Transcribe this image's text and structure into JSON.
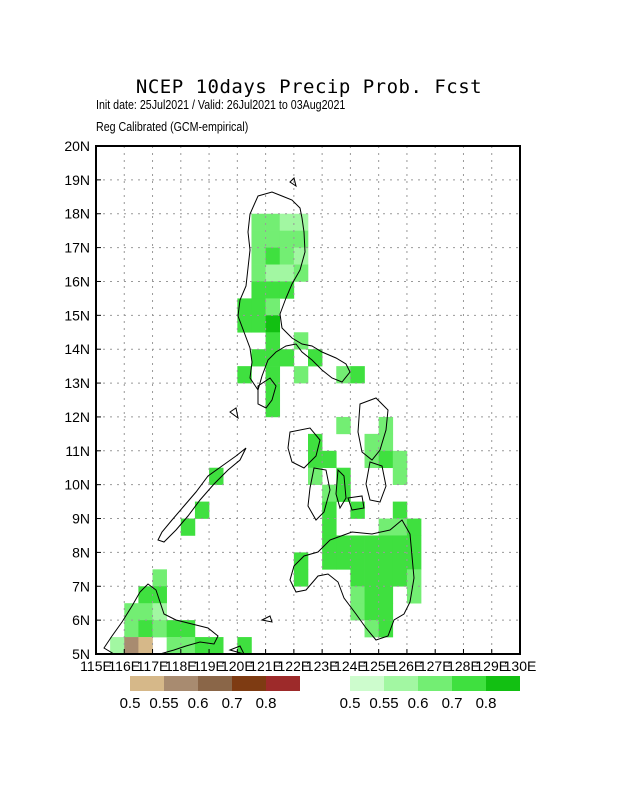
{
  "header": {
    "title": "NCEP 10days Precip Prob. Fcst",
    "subtitle1": "Init date: 25Jul2021 / Valid: 26Jul2021 to 03Aug2021",
    "subtitle2": "Reg Calibrated (GCM-empirical)"
  },
  "axes": {
    "lat_labels": [
      "5N",
      "6N",
      "7N",
      "8N",
      "9N",
      "10N",
      "11N",
      "12N",
      "13N",
      "14N",
      "15N",
      "16N",
      "17N",
      "18N",
      "19N",
      "20N"
    ],
    "lon_labels": [
      "115E",
      "116E",
      "117E",
      "118E",
      "119E",
      "120E",
      "121E",
      "122E",
      "123E",
      "124E",
      "125E",
      "126E",
      "127E",
      "128E",
      "129E",
      "130E"
    ],
    "lat_range": [
      5,
      20
    ],
    "lon_range": [
      115,
      130
    ],
    "grid": "dotted"
  },
  "legend": {
    "dry": {
      "labels": [
        "0.5",
        "0.55",
        "0.6",
        "0.7",
        "0.8"
      ],
      "colors": [
        "#d6b889",
        "#a88b70",
        "#8a6648",
        "#7e3b12",
        "#9d2a2a"
      ]
    },
    "wet": {
      "labels": [
        "0.5",
        "0.55",
        "0.6",
        "0.7",
        "0.8"
      ],
      "colors": [
        "#cdfccd",
        "#a2f7a2",
        "#73ee73",
        "#3fe03f",
        "#12c012"
      ]
    }
  },
  "chart_data": {
    "type": "heatmap",
    "title": "NCEP 10days Precip Prob. Fcst",
    "units_x": "longitude",
    "units_y": "latitude",
    "cell_size_deg": 0.5,
    "cells": [
      {
        "lon": 120.5,
        "lat": 17.5,
        "v": 0.6
      },
      {
        "lon": 121.0,
        "lat": 17.5,
        "v": 0.6
      },
      {
        "lon": 121.5,
        "lat": 17.5,
        "v": 0.55
      },
      {
        "lon": 122.0,
        "lat": 17.5,
        "v": 0.55
      },
      {
        "lon": 120.5,
        "lat": 17.0,
        "v": 0.6
      },
      {
        "lon": 121.0,
        "lat": 17.0,
        "v": 0.6
      },
      {
        "lon": 121.5,
        "lat": 17.0,
        "v": 0.6
      },
      {
        "lon": 122.0,
        "lat": 17.0,
        "v": 0.6
      },
      {
        "lon": 120.5,
        "lat": 16.5,
        "v": 0.6
      },
      {
        "lon": 121.0,
        "lat": 16.5,
        "v": 0.7
      },
      {
        "lon": 121.5,
        "lat": 16.5,
        "v": 0.6
      },
      {
        "lon": 122.0,
        "lat": 16.5,
        "v": 0.55
      },
      {
        "lon": 120.5,
        "lat": 16.0,
        "v": 0.6
      },
      {
        "lon": 121.0,
        "lat": 16.0,
        "v": 0.55
      },
      {
        "lon": 121.5,
        "lat": 16.0,
        "v": 0.55
      },
      {
        "lon": 122.0,
        "lat": 16.0,
        "v": 0.6
      },
      {
        "lon": 120.5,
        "lat": 15.5,
        "v": 0.7
      },
      {
        "lon": 121.0,
        "lat": 15.5,
        "v": 0.7
      },
      {
        "lon": 121.5,
        "lat": 15.5,
        "v": 0.7
      },
      {
        "lon": 120.0,
        "lat": 15.0,
        "v": 0.7
      },
      {
        "lon": 120.5,
        "lat": 15.0,
        "v": 0.7
      },
      {
        "lon": 121.0,
        "lat": 15.0,
        "v": 0.6
      },
      {
        "lon": 120.0,
        "lat": 14.5,
        "v": 0.7
      },
      {
        "lon": 120.5,
        "lat": 14.5,
        "v": 0.7
      },
      {
        "lon": 121.0,
        "lat": 14.5,
        "v": 0.8
      },
      {
        "lon": 121.0,
        "lat": 14.0,
        "v": 0.7
      },
      {
        "lon": 122.0,
        "lat": 14.0,
        "v": 0.6
      },
      {
        "lon": 120.5,
        "lat": 13.5,
        "v": 0.7
      },
      {
        "lon": 121.0,
        "lat": 13.5,
        "v": 0.7
      },
      {
        "lon": 121.5,
        "lat": 13.5,
        "v": 0.7
      },
      {
        "lon": 122.5,
        "lat": 13.5,
        "v": 0.7
      },
      {
        "lon": 120.0,
        "lat": 13.0,
        "v": 0.7
      },
      {
        "lon": 121.0,
        "lat": 13.0,
        "v": 0.7
      },
      {
        "lon": 122.0,
        "lat": 13.0,
        "v": 0.6
      },
      {
        "lon": 123.5,
        "lat": 13.0,
        "v": 0.6
      },
      {
        "lon": 124.0,
        "lat": 13.0,
        "v": 0.7
      },
      {
        "lon": 121.0,
        "lat": 12.5,
        "v": 0.7
      },
      {
        "lon": 121.0,
        "lat": 12.0,
        "v": 0.7
      },
      {
        "lon": 123.5,
        "lat": 11.5,
        "v": 0.6
      },
      {
        "lon": 125.0,
        "lat": 11.5,
        "v": 0.6
      },
      {
        "lon": 122.5,
        "lat": 11.0,
        "v": 0.7
      },
      {
        "lon": 124.5,
        "lat": 11.0,
        "v": 0.6
      },
      {
        "lon": 125.0,
        "lat": 11.0,
        "v": 0.6
      },
      {
        "lon": 122.5,
        "lat": 10.5,
        "v": 0.7
      },
      {
        "lon": 123.0,
        "lat": 10.5,
        "v": 0.7
      },
      {
        "lon": 124.5,
        "lat": 10.5,
        "v": 0.6
      },
      {
        "lon": 125.0,
        "lat": 10.5,
        "v": 0.7
      },
      {
        "lon": 125.5,
        "lat": 10.5,
        "v": 0.6
      },
      {
        "lon": 122.5,
        "lat": 10.0,
        "v": 0.6
      },
      {
        "lon": 123.5,
        "lat": 10.0,
        "v": 0.7
      },
      {
        "lon": 125.5,
        "lat": 10.0,
        "v": 0.6
      },
      {
        "lon": 123.5,
        "lat": 9.5,
        "v": 0.7
      },
      {
        "lon": 123.0,
        "lat": 9.5,
        "v": 0.6
      },
      {
        "lon": 123.0,
        "lat": 9.0,
        "v": 0.7
      },
      {
        "lon": 124.0,
        "lat": 9.0,
        "v": 0.7
      },
      {
        "lon": 125.5,
        "lat": 9.0,
        "v": 0.7
      },
      {
        "lon": 123.0,
        "lat": 8.5,
        "v": 0.7
      },
      {
        "lon": 125.0,
        "lat": 8.5,
        "v": 0.6
      },
      {
        "lon": 125.5,
        "lat": 8.5,
        "v": 0.6
      },
      {
        "lon": 126.0,
        "lat": 8.5,
        "v": 0.7
      },
      {
        "lon": 123.0,
        "lat": 8.0,
        "v": 0.7
      },
      {
        "lon": 123.5,
        "lat": 8.0,
        "v": 0.7
      },
      {
        "lon": 124.0,
        "lat": 8.0,
        "v": 0.7
      },
      {
        "lon": 124.5,
        "lat": 8.0,
        "v": 0.7
      },
      {
        "lon": 125.0,
        "lat": 8.0,
        "v": 0.7
      },
      {
        "lon": 125.5,
        "lat": 8.0,
        "v": 0.7
      },
      {
        "lon": 126.0,
        "lat": 8.0,
        "v": 0.7
      },
      {
        "lon": 122.0,
        "lat": 7.5,
        "v": 0.7
      },
      {
        "lon": 123.0,
        "lat": 7.5,
        "v": 0.7
      },
      {
        "lon": 123.5,
        "lat": 7.5,
        "v": 0.7
      },
      {
        "lon": 124.0,
        "lat": 7.5,
        "v": 0.7
      },
      {
        "lon": 124.5,
        "lat": 7.5,
        "v": 0.7
      },
      {
        "lon": 125.0,
        "lat": 7.5,
        "v": 0.7
      },
      {
        "lon": 125.5,
        "lat": 7.5,
        "v": 0.7
      },
      {
        "lon": 126.0,
        "lat": 7.5,
        "v": 0.7
      },
      {
        "lon": 122.0,
        "lat": 7.0,
        "v": 0.7
      },
      {
        "lon": 124.0,
        "lat": 7.0,
        "v": 0.7
      },
      {
        "lon": 124.5,
        "lat": 7.0,
        "v": 0.7
      },
      {
        "lon": 125.0,
        "lat": 7.0,
        "v": 0.7
      },
      {
        "lon": 125.5,
        "lat": 7.0,
        "v": 0.7
      },
      {
        "lon": 126.0,
        "lat": 7.0,
        "v": 0.6
      },
      {
        "lon": 124.0,
        "lat": 6.5,
        "v": 0.6
      },
      {
        "lon": 124.5,
        "lat": 6.5,
        "v": 0.7
      },
      {
        "lon": 125.0,
        "lat": 6.5,
        "v": 0.7
      },
      {
        "lon": 126.0,
        "lat": 6.5,
        "v": 0.6
      },
      {
        "lon": 124.0,
        "lat": 6.0,
        "v": 0.6
      },
      {
        "lon": 124.5,
        "lat": 6.0,
        "v": 0.7
      },
      {
        "lon": 125.0,
        "lat": 6.0,
        "v": 0.7
      },
      {
        "lon": 124.5,
        "lat": 5.5,
        "v": 0.6
      },
      {
        "lon": 125.0,
        "lat": 5.5,
        "v": 0.7
      },
      {
        "lon": 117.0,
        "lat": 7.0,
        "v": 0.6
      },
      {
        "lon": 116.5,
        "lat": 6.5,
        "v": 0.7
      },
      {
        "lon": 117.0,
        "lat": 6.5,
        "v": 0.7
      },
      {
        "lon": 116.0,
        "lat": 6.0,
        "v": 0.6
      },
      {
        "lon": 116.5,
        "lat": 6.0,
        "v": 0.6
      },
      {
        "lon": 117.0,
        "lat": 6.0,
        "v": 0.55
      },
      {
        "lon": 116.0,
        "lat": 5.5,
        "v": 0.6
      },
      {
        "lon": 116.5,
        "lat": 5.5,
        "v": 0.7
      },
      {
        "lon": 117.0,
        "lat": 5.5,
        "v": 0.6
      },
      {
        "lon": 117.5,
        "lat": 5.5,
        "v": 0.7
      },
      {
        "lon": 118.0,
        "lat": 5.5,
        "v": 0.7
      },
      {
        "lon": 115.5,
        "lat": 5.0,
        "v": 0.55
      },
      {
        "lon": 117.5,
        "lat": 5.0,
        "v": 0.6
      },
      {
        "lon": 118.0,
        "lat": 5.0,
        "v": 0.6
      },
      {
        "lon": 118.5,
        "lat": 5.0,
        "v": 0.7
      },
      {
        "lon": 119.0,
        "lat": 5.0,
        "v": 0.7
      },
      {
        "lon": 120.0,
        "lat": 5.0,
        "v": 0.7
      },
      {
        "lon": 116.0,
        "lat": 5.0,
        "v": -0.55
      },
      {
        "lon": 116.5,
        "lat": 5.0,
        "v": -0.5
      },
      {
        "lon": 118.5,
        "lat": 9.0,
        "v": 0.7
      },
      {
        "lon": 118.0,
        "lat": 8.5,
        "v": 0.7
      },
      {
        "lon": 119.0,
        "lat": 10.0,
        "v": 0.7
      }
    ]
  }
}
